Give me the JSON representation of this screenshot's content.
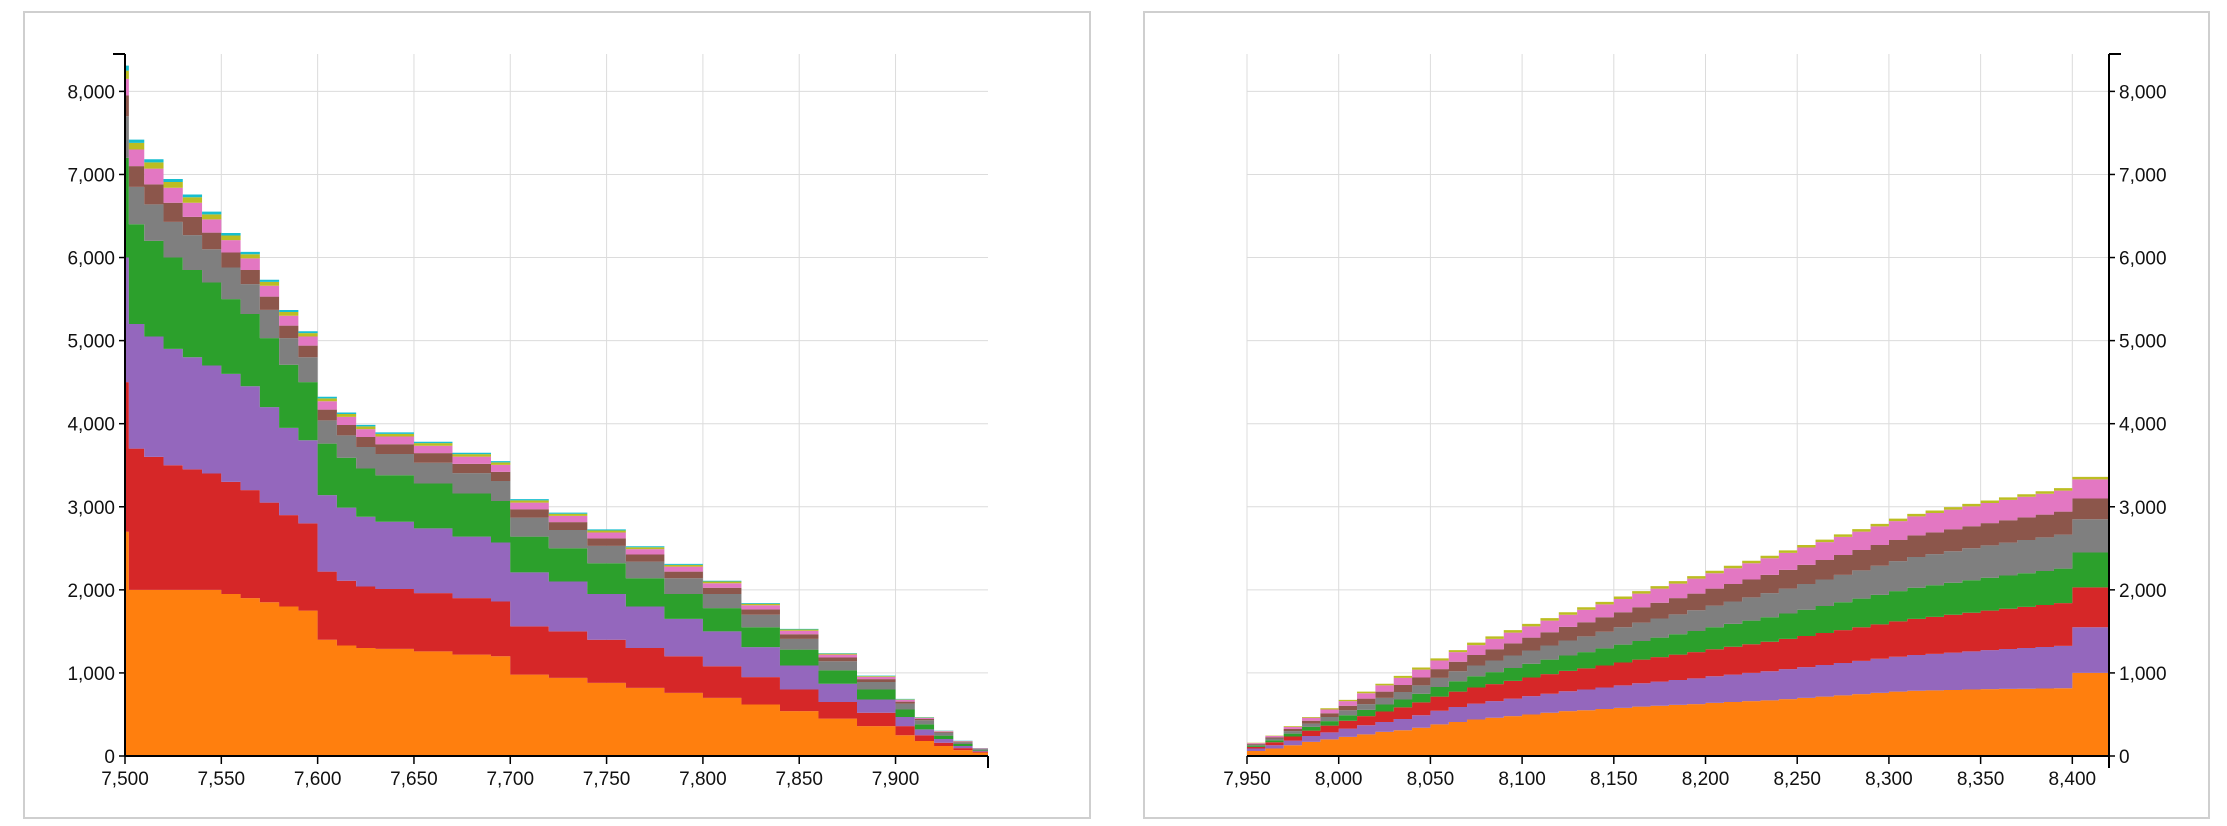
{
  "chart_data": [
    {
      "type": "area",
      "stacked": true,
      "step": true,
      "grid": true,
      "y_axis_side": "left",
      "xlim": [
        7500,
        7948
      ],
      "ylim": [
        0,
        8450
      ],
      "x_ticks": [
        7500,
        7550,
        7600,
        7650,
        7700,
        7750,
        7800,
        7850,
        7900
      ],
      "x_tick_labels": [
        "7,500",
        "7,550",
        "7,600",
        "7,650",
        "7,700",
        "7,750",
        "7,800",
        "7,850",
        "7,900"
      ],
      "y_ticks": [
        0,
        1000,
        2000,
        3000,
        4000,
        5000,
        6000,
        7000,
        8000
      ],
      "y_tick_labels": [
        "0",
        "1,000",
        "2,000",
        "3,000",
        "4,000",
        "5,000",
        "6,000",
        "7,000",
        "8,000"
      ],
      "x": [
        7500,
        7502,
        7510,
        7520,
        7530,
        7540,
        7550,
        7560,
        7570,
        7580,
        7590,
        7600,
        7610,
        7620,
        7630,
        7650,
        7670,
        7690,
        7700,
        7720,
        7740,
        7760,
        7780,
        7800,
        7820,
        7840,
        7860,
        7880,
        7900,
        7910,
        7920,
        7930,
        7940,
        7948
      ],
      "series": [
        {
          "color": "#ff7f0e",
          "values": [
            2700,
            2000,
            2000,
            2000,
            2000,
            2000,
            1950,
            1900,
            1850,
            1800,
            1750,
            1400,
            1330,
            1300,
            1290,
            1260,
            1220,
            1200,
            980,
            940,
            880,
            820,
            760,
            700,
            620,
            540,
            450,
            360,
            250,
            180,
            120,
            70,
            40,
            15
          ]
        },
        {
          "color": "#d62728",
          "values": [
            1800,
            1700,
            1600,
            1500,
            1450,
            1400,
            1350,
            1300,
            1200,
            1100,
            1050,
            820,
            780,
            740,
            720,
            700,
            680,
            660,
            580,
            560,
            520,
            480,
            440,
            380,
            330,
            260,
            200,
            160,
            110,
            70,
            40,
            25,
            12,
            5
          ]
        },
        {
          "color": "#9467bd",
          "values": [
            1500,
            1500,
            1450,
            1400,
            1350,
            1300,
            1300,
            1250,
            1150,
            1050,
            1000,
            920,
            880,
            840,
            810,
            780,
            740,
            710,
            650,
            600,
            550,
            500,
            450,
            420,
            360,
            290,
            220,
            160,
            110,
            70,
            45,
            25,
            12,
            5
          ]
        },
        {
          "color": "#2ca02c",
          "values": [
            1200,
            1200,
            1150,
            1100,
            1050,
            1000,
            900,
            870,
            830,
            760,
            700,
            620,
            600,
            580,
            560,
            540,
            520,
            500,
            430,
            400,
            370,
            340,
            300,
            280,
            240,
            190,
            160,
            120,
            90,
            60,
            40,
            25,
            10,
            5
          ]
        },
        {
          "color": "#7f7f7f",
          "values": [
            500,
            450,
            440,
            430,
            420,
            400,
            380,
            360,
            340,
            320,
            300,
            280,
            270,
            260,
            255,
            250,
            245,
            240,
            230,
            220,
            210,
            200,
            190,
            170,
            150,
            130,
            110,
            90,
            70,
            50,
            35,
            20,
            10,
            5
          ]
        },
        {
          "color": "#8c564b",
          "values": [
            250,
            250,
            240,
            230,
            220,
            200,
            180,
            170,
            160,
            150,
            140,
            130,
            125,
            120,
            118,
            115,
            112,
            110,
            100,
            95,
            90,
            85,
            80,
            75,
            65,
            55,
            45,
            35,
            25,
            15,
            10,
            8,
            5,
            2
          ]
        },
        {
          "color": "#e377c2",
          "values": [
            200,
            200,
            190,
            180,
            170,
            160,
            150,
            140,
            130,
            120,
            110,
            100,
            97,
            95,
            93,
            90,
            87,
            85,
            80,
            75,
            70,
            65,
            60,
            55,
            50,
            42,
            35,
            28,
            20,
            14,
            9,
            6,
            4,
            2
          ]
        },
        {
          "color": "#bcbd22",
          "values": [
            100,
            80,
            75,
            70,
            65,
            60,
            55,
            50,
            47,
            44,
            40,
            35,
            34,
            33,
            32,
            31,
            30,
            29,
            27,
            26,
            25,
            23,
            21,
            20,
            18,
            15,
            12,
            9,
            7,
            5,
            3,
            2,
            1,
            1
          ]
        },
        {
          "color": "#17becf",
          "values": [
            60,
            40,
            38,
            36,
            34,
            32,
            30,
            28,
            26,
            24,
            22,
            20,
            19,
            18,
            18,
            17,
            16,
            16,
            15,
            14,
            13,
            12,
            11,
            10,
            9,
            8,
            7,
            6,
            5,
            4,
            3,
            2,
            1,
            1
          ]
        }
      ]
    },
    {
      "type": "area",
      "stacked": true,
      "step": true,
      "grid": true,
      "y_axis_side": "right",
      "xlim": [
        7950,
        8420
      ],
      "ylim": [
        0,
        8450
      ],
      "x_ticks": [
        7950,
        8000,
        8050,
        8100,
        8150,
        8200,
        8250,
        8300,
        8350,
        8400
      ],
      "x_tick_labels": [
        "7,950",
        "8,000",
        "8,050",
        "8,100",
        "8,150",
        "8,200",
        "8,250",
        "8,300",
        "8,350",
        "8,400"
      ],
      "y_ticks": [
        0,
        1000,
        2000,
        3000,
        4000,
        5000,
        6000,
        7000,
        8000
      ],
      "y_tick_labels": [
        "0",
        "1,000",
        "2,000",
        "3,000",
        "4,000",
        "5,000",
        "6,000",
        "7,000",
        "8,000"
      ],
      "x": [
        7950,
        7960,
        7970,
        7980,
        7990,
        8000,
        8010,
        8020,
        8030,
        8040,
        8050,
        8060,
        8070,
        8080,
        8090,
        8100,
        8110,
        8120,
        8130,
        8140,
        8150,
        8160,
        8170,
        8180,
        8190,
        8200,
        8210,
        8220,
        8230,
        8240,
        8250,
        8260,
        8270,
        8280,
        8290,
        8300,
        8310,
        8320,
        8330,
        8340,
        8350,
        8360,
        8370,
        8380,
        8390,
        8400,
        8410,
        8420
      ],
      "series": [
        {
          "color": "#ff7f0e",
          "values": [
            60,
            90,
            130,
            170,
            200,
            230,
            260,
            290,
            310,
            340,
            380,
            410,
            440,
            460,
            480,
            500,
            520,
            540,
            550,
            565,
            580,
            595,
            605,
            615,
            625,
            640,
            650,
            660,
            670,
            685,
            700,
            715,
            730,
            745,
            760,
            775,
            785,
            790,
            795,
            800,
            805,
            808,
            810,
            812,
            815,
            1000,
            1000,
            1000
          ]
        },
        {
          "color": "#9467bd",
          "values": [
            30,
            40,
            55,
            70,
            85,
            100,
            110,
            120,
            135,
            150,
            165,
            180,
            190,
            200,
            210,
            220,
            230,
            240,
            250,
            260,
            270,
            280,
            290,
            300,
            310,
            320,
            330,
            340,
            350,
            360,
            370,
            380,
            390,
            400,
            410,
            420,
            430,
            440,
            450,
            460,
            470,
            480,
            490,
            500,
            510,
            550,
            550,
            550
          ]
        },
        {
          "color": "#d62728",
          "values": [
            20,
            35,
            50,
            65,
            80,
            95,
            110,
            125,
            140,
            155,
            170,
            185,
            195,
            205,
            215,
            225,
            235,
            245,
            255,
            265,
            275,
            285,
            295,
            305,
            315,
            325,
            335,
            345,
            355,
            365,
            375,
            385,
            395,
            405,
            415,
            425,
            435,
            445,
            455,
            465,
            475,
            485,
            495,
            505,
            515,
            480,
            480,
            480
          ]
        },
        {
          "color": "#2ca02c",
          "values": [
            15,
            25,
            35,
            45,
            55,
            65,
            75,
            85,
            95,
            105,
            115,
            125,
            135,
            145,
            155,
            165,
            175,
            185,
            195,
            205,
            215,
            225,
            235,
            245,
            255,
            265,
            275,
            285,
            295,
            305,
            315,
            325,
            335,
            345,
            355,
            365,
            375,
            380,
            385,
            390,
            395,
            400,
            405,
            410,
            415,
            420,
            420,
            420
          ]
        },
        {
          "color": "#7f7f7f",
          "values": [
            10,
            20,
            30,
            40,
            50,
            60,
            70,
            80,
            90,
            100,
            110,
            120,
            130,
            140,
            150,
            160,
            170,
            180,
            190,
            200,
            210,
            220,
            230,
            240,
            250,
            260,
            270,
            280,
            290,
            300,
            310,
            320,
            330,
            340,
            350,
            360,
            370,
            375,
            380,
            385,
            390,
            395,
            400,
            405,
            410,
            400,
            400,
            400
          ]
        },
        {
          "color": "#8c564b",
          "values": [
            10,
            15,
            25,
            35,
            45,
            55,
            65,
            75,
            85,
            95,
            105,
            115,
            125,
            135,
            145,
            155,
            160,
            165,
            170,
            175,
            180,
            185,
            190,
            195,
            200,
            205,
            210,
            215,
            220,
            225,
            230,
            235,
            240,
            245,
            250,
            255,
            260,
            262,
            264,
            266,
            268,
            270,
            272,
            274,
            276,
            250,
            250,
            250
          ]
        },
        {
          "color": "#e377c2",
          "values": [
            10,
            15,
            25,
            35,
            45,
            55,
            65,
            75,
            85,
            95,
            105,
            115,
            120,
            125,
            130,
            135,
            140,
            145,
            150,
            155,
            160,
            165,
            170,
            175,
            180,
            185,
            190,
            195,
            200,
            205,
            210,
            215,
            218,
            221,
            224,
            227,
            230,
            233,
            236,
            239,
            242,
            245,
            248,
            251,
            254,
            230,
            230,
            230
          ]
        },
        {
          "color": "#bcbd22",
          "values": [
            5,
            5,
            10,
            10,
            15,
            15,
            20,
            20,
            25,
            25,
            25,
            25,
            30,
            30,
            30,
            30,
            30,
            30,
            30,
            30,
            30,
            30,
            30,
            30,
            30,
            30,
            30,
            30,
            30,
            30,
            30,
            30,
            30,
            30,
            30,
            30,
            30,
            30,
            30,
            30,
            30,
            30,
            30,
            30,
            30,
            30,
            30,
            30
          ]
        }
      ]
    }
  ]
}
